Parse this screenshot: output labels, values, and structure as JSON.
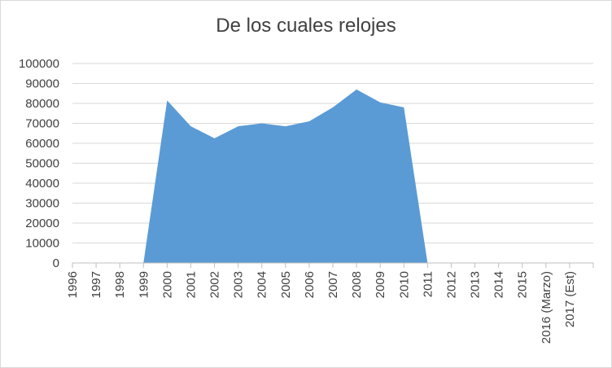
{
  "chart_data": {
    "type": "area",
    "title": "De los cuales relojes",
    "xlabel": "",
    "ylabel": "",
    "categories": [
      "1996",
      "1997",
      "1998",
      "1999",
      "2000",
      "2001",
      "2002",
      "2003",
      "2004",
      "2005",
      "2006",
      "2007",
      "2008",
      "2009",
      "2010",
      "2011",
      "2012",
      "2013",
      "2014",
      "2015",
      "2016 (Marzo)",
      "2017 (Est)"
    ],
    "series": [
      {
        "values": [
          0,
          0,
          0,
          0,
          81500,
          68500,
          62500,
          68500,
          70000,
          68500,
          71000,
          78000,
          87000,
          80500,
          78000,
          0,
          0,
          0,
          0,
          0,
          0,
          0
        ]
      }
    ],
    "ylim": [
      0,
      100000
    ],
    "yticks": [
      0,
      10000,
      20000,
      30000,
      40000,
      50000,
      60000,
      70000,
      80000,
      90000,
      100000
    ],
    "grid": true,
    "legend": "none",
    "colors": {
      "fill": "#5b9bd5",
      "grid": "#d9d9d9",
      "axis": "#bfbfbf",
      "text": "#404040"
    }
  }
}
